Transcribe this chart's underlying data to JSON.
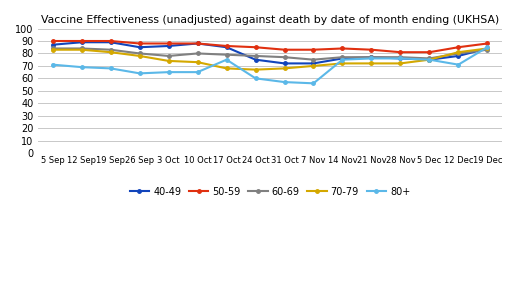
{
  "title": "Vaccine Effectiveness (unadjusted) against death by date of month ending (UKHSA)",
  "x_labels": [
    "5 Sep",
    "12 Sep",
    "19 Sep",
    "26 Sep",
    "3 Oct",
    "10 Oct",
    "17 Oct",
    "24 Oct",
    "31 Oct",
    "7 Nov",
    "14 Nov",
    "21 Nov",
    "28 Nov",
    "5 Dec",
    "12 Dec",
    "19 Dec"
  ],
  "series": [
    {
      "label": "40-49",
      "color": "#1144bb",
      "values": [
        87,
        89,
        89,
        85,
        86,
        88,
        85,
        75,
        72,
        72,
        76,
        77,
        76,
        75,
        78,
        84
      ]
    },
    {
      "label": "50-59",
      "color": "#e03010",
      "values": [
        90,
        90,
        90,
        88,
        88,
        88,
        86,
        85,
        83,
        83,
        84,
        83,
        81,
        81,
        85,
        88
      ]
    },
    {
      "label": "60-69",
      "color": "#808080",
      "values": [
        84,
        84,
        83,
        80,
        78,
        80,
        79,
        78,
        77,
        75,
        77,
        77,
        77,
        76,
        80,
        83
      ]
    },
    {
      "label": "70-79",
      "color": "#d4a800",
      "values": [
        83,
        83,
        81,
        78,
        74,
        73,
        68,
        67,
        68,
        70,
        72,
        72,
        72,
        75,
        81,
        84
      ]
    },
    {
      "label": "80+",
      "color": "#5bb8e8",
      "values": [
        71,
        69,
        68,
        64,
        65,
        65,
        75,
        60,
        57,
        56,
        75,
        76,
        76,
        75,
        71,
        85
      ]
    }
  ],
  "ylim": [
    0,
    100
  ],
  "yticks": [
    0,
    10,
    20,
    30,
    40,
    50,
    60,
    70,
    80,
    90,
    100
  ],
  "background_color": "#ffffff",
  "grid_color": "#c8c8c8"
}
